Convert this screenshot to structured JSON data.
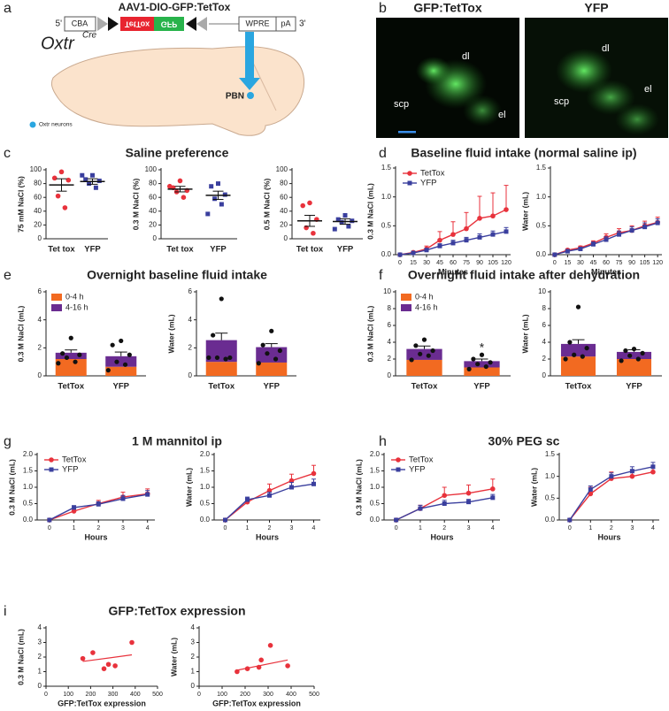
{
  "panel_labels": [
    "a",
    "b",
    "c",
    "d",
    "e",
    "f",
    "g",
    "h",
    "i"
  ],
  "construct": {
    "title": "AAV1-DIO-GFP:TetTox",
    "five_prime": "5'",
    "promoter": "CBA",
    "tettox": "TetTox",
    "gfp": "GFP",
    "wpre": "WPRE",
    "pa": "pA",
    "three_prime": "3'"
  },
  "brain": {
    "mouse_line": "Oxtr",
    "superscript": "Cre",
    "region": "PBN",
    "legend": "Oxtr neurons"
  },
  "images": [
    {
      "title": "GFP:TetTox",
      "labels": [
        "dl",
        "scp",
        "el"
      ]
    },
    {
      "title": "YFP",
      "labels": [
        "dl",
        "el",
        "scp"
      ]
    }
  ],
  "chart_data": [
    {
      "type": "strip",
      "title": "Saline preference",
      "ylabel": "75 mM NaCl (%)",
      "categories": [
        "Tet tox",
        "YFP"
      ],
      "ylim": [
        0,
        100
      ],
      "yticks": [
        0,
        20,
        40,
        60,
        80,
        100
      ],
      "series": [
        {
          "color": "#e8323c",
          "marker": "circle",
          "values": [
            97,
            88,
            85,
            62,
            45
          ],
          "mean": 78,
          "error": 9
        },
        {
          "color": "#3a3f9e",
          "marker": "square",
          "values": [
            92,
            86,
            84,
            80,
            74,
            92
          ],
          "mean": 83,
          "error": 4
        }
      ]
    },
    {
      "type": "strip",
      "ylabel": "0.3 M NaCl (%)",
      "categories": [
        "Tet tox",
        "YFP"
      ],
      "ylim": [
        0,
        100
      ],
      "yticks": [
        0,
        20,
        40,
        60,
        80,
        100
      ],
      "series": [
        {
          "color": "#e8323c",
          "marker": "circle",
          "values": [
            84,
            74,
            70,
            68,
            60,
            76
          ],
          "mean": 72,
          "error": 4
        },
        {
          "color": "#3a3f9e",
          "marker": "square",
          "values": [
            80,
            76,
            64,
            58,
            50,
            36
          ],
          "mean": 63,
          "error": 6
        }
      ]
    },
    {
      "type": "strip",
      "ylabel": "0.5 M NaCl (%)",
      "categories": [
        "Tet tox",
        "YFP"
      ],
      "ylim": [
        0,
        100
      ],
      "yticks": [
        0,
        20,
        40,
        60,
        80,
        100
      ],
      "series": [
        {
          "color": "#e8323c",
          "marker": "circle",
          "values": [
            52,
            48,
            28,
            16,
            8
          ],
          "mean": 26,
          "error": 8
        },
        {
          "color": "#3a3f9e",
          "marker": "square",
          "values": [
            34,
            28,
            26,
            24,
            18,
            14
          ],
          "mean": 25,
          "error": 4
        }
      ]
    },
    {
      "type": "line",
      "title": "Baseline fluid intake (normal saline ip)",
      "ylabel": "0.3 M NaCl (mL)",
      "xlabel": "Minutes",
      "legend": "upper left",
      "x": [
        0,
        15,
        30,
        45,
        60,
        75,
        90,
        105,
        120
      ],
      "xlim": [
        -5,
        125
      ],
      "xticks": [
        0,
        15,
        30,
        45,
        60,
        75,
        90,
        105,
        120
      ],
      "ylim": [
        0,
        1.5
      ],
      "yticks": [
        {
          "value": 0,
          "label": "0.0"
        },
        0.5,
        {
          "value": 1,
          "label": "1.0"
        },
        1.5
      ],
      "series": [
        {
          "name": "TetTox",
          "color": "#e8323c",
          "marker": "circle",
          "values": [
            0,
            0.04,
            0.1,
            0.25,
            0.35,
            0.45,
            0.63,
            0.67,
            0.78
          ],
          "errors": [
            0,
            0.02,
            0.05,
            0.15,
            0.22,
            0.28,
            0.38,
            0.4,
            0.42
          ]
        },
        {
          "name": "YFP",
          "color": "#3a3f9e",
          "marker": "square",
          "values": [
            0,
            0.03,
            0.08,
            0.15,
            0.2,
            0.25,
            0.3,
            0.35,
            0.4
          ],
          "errors": [
            0,
            0.02,
            0.03,
            0.04,
            0.05,
            0.05,
            0.06,
            0.06,
            0.07
          ]
        }
      ]
    },
    {
      "type": "line",
      "ylabel": "Water (mL)",
      "xlabel": "Minutes",
      "x": [
        0,
        15,
        30,
        45,
        60,
        75,
        90,
        105,
        120
      ],
      "xlim": [
        -5,
        125
      ],
      "xticks": [
        0,
        15,
        30,
        45,
        60,
        75,
        90,
        105,
        120
      ],
      "ylim": [
        0,
        1.5
      ],
      "yticks": [
        {
          "value": 0,
          "label": "0.0"
        },
        0.5,
        {
          "value": 1,
          "label": "1.0"
        },
        1.5
      ],
      "series": [
        {
          "name": "TetTox",
          "color": "#e8323c",
          "marker": "circle",
          "values": [
            0,
            0.08,
            0.12,
            0.2,
            0.3,
            0.38,
            0.42,
            0.5,
            0.56
          ],
          "errors": [
            0,
            0.02,
            0.03,
            0.04,
            0.06,
            0.07,
            0.08,
            0.08,
            0.09
          ]
        },
        {
          "name": "YFP",
          "color": "#3a3f9e",
          "marker": "square",
          "values": [
            0,
            0.06,
            0.1,
            0.18,
            0.26,
            0.35,
            0.42,
            0.48,
            0.55
          ],
          "errors": [
            0,
            0.02,
            0.03,
            0.04,
            0.05,
            0.06,
            0.06,
            0.07,
            0.07
          ]
        }
      ]
    },
    {
      "type": "bar",
      "title": "Overnight baseline fluid intake",
      "ylabel": "0.3 M NaCl (mL)",
      "legend": "upper left",
      "categories": [
        "TetTox",
        "YFP"
      ],
      "ylim": [
        0,
        6
      ],
      "yticks": [
        0,
        2,
        4,
        6
      ],
      "series": [
        {
          "name": "0-4 h",
          "color": "#f26a21",
          "values": [
            1.2,
            0.65
          ]
        },
        {
          "name": "4-16 h",
          "color": "#6a2c91",
          "values": [
            0.45,
            0.75
          ]
        }
      ],
      "errors": [
        0.2,
        0.3
      ],
      "points": [
        [
          2.7,
          1.6,
          1.5,
          1.3,
          1.0,
          0.9
        ],
        [
          2.5,
          2.2,
          1.5,
          1.0,
          0.8,
          0.4
        ]
      ]
    },
    {
      "type": "bar",
      "ylabel": "Water (mL)",
      "categories": [
        "TetTox",
        "YFP"
      ],
      "ylim": [
        0,
        6
      ],
      "yticks": [
        0,
        2,
        4,
        6
      ],
      "series": [
        {
          "name": "0-4 h",
          "color": "#f26a21",
          "values": [
            1.0,
            0.95
          ]
        },
        {
          "name": "4-16 h",
          "color": "#6a2c91",
          "values": [
            1.55,
            1.1
          ]
        }
      ],
      "errors": [
        0.5,
        0.25
      ],
      "points": [
        [
          5.5,
          2.9,
          1.3,
          1.3,
          1.2,
          1.3
        ],
        [
          3.2,
          2.2,
          1.8,
          1.6,
          1.2,
          0.9
        ]
      ]
    },
    {
      "type": "bar",
      "title": "Overnight fluid intake after dehydration",
      "ylabel": "0.3 M NaCl (mL)",
      "legend": "upper left",
      "annotation": "*",
      "categories": [
        "TetTox",
        "YFP"
      ],
      "ylim": [
        0,
        10
      ],
      "yticks": [
        0,
        2,
        4,
        6,
        8,
        10
      ],
      "series": [
        {
          "name": "0-4 h",
          "color": "#f26a21",
          "values": [
            1.9,
            1.0
          ]
        },
        {
          "name": "4-16 h",
          "color": "#6a2c91",
          "values": [
            1.3,
            0.75
          ]
        }
      ],
      "errors": [
        0.35,
        0.25
      ],
      "points": [
        [
          4.3,
          3.6,
          3.0,
          2.6,
          2.4,
          1.9
        ],
        [
          2.5,
          2.0,
          1.6,
          1.4,
          1.1,
          0.8
        ]
      ]
    },
    {
      "type": "bar",
      "ylabel": "Water (mL)",
      "categories": [
        "TetTox",
        "YFP"
      ],
      "ylim": [
        0,
        10
      ],
      "yticks": [
        0,
        2,
        4,
        6,
        8,
        10
      ],
      "series": [
        {
          "name": "0-4 h",
          "color": "#f26a21",
          "values": [
            2.3,
            2.0
          ]
        },
        {
          "name": "4-16 h",
          "color": "#6a2c91",
          "values": [
            1.5,
            0.85
          ]
        }
      ],
      "errors": [
        0.5,
        0.25
      ],
      "points": [
        [
          8.2,
          4.0,
          3.3,
          2.5,
          2.3,
          2.0
        ],
        [
          3.2,
          3.0,
          2.7,
          2.4,
          2.0,
          1.8
        ]
      ]
    },
    {
      "type": "line",
      "title": "1 M mannitol ip",
      "ylabel": "0.3 M NaCl (mL)",
      "xlabel": "Hours",
      "legend": "upper left",
      "x": [
        0,
        1,
        2,
        3,
        4
      ],
      "xlim": [
        -0.5,
        4.3
      ],
      "xticks": [
        0,
        1,
        2,
        3,
        4
      ],
      "ylim": [
        0,
        2
      ],
      "yticks": [
        {
          "value": 0,
          "label": "0.0"
        },
        0.5,
        {
          "value": 1,
          "label": "1.0"
        },
        1.5,
        {
          "value": 2,
          "label": "2.0"
        }
      ],
      "series": [
        {
          "name": "TetTox",
          "color": "#e8323c",
          "marker": "circle",
          "values": [
            0,
            0.27,
            0.5,
            0.7,
            0.8
          ],
          "errors": [
            0,
            0.08,
            0.1,
            0.15,
            0.15
          ]
        },
        {
          "name": "YFP",
          "color": "#3a3f9e",
          "marker": "square",
          "values": [
            0,
            0.38,
            0.48,
            0.65,
            0.78
          ],
          "errors": [
            0,
            0.06,
            0.08,
            0.1,
            0.12
          ]
        }
      ]
    },
    {
      "type": "line",
      "ylabel": "Water (mL)",
      "xlabel": "Hours",
      "x": [
        0,
        1,
        2,
        3,
        4
      ],
      "xlim": [
        -0.5,
        4.3
      ],
      "xticks": [
        0,
        1,
        2,
        3,
        4
      ],
      "ylim": [
        0,
        2
      ],
      "yticks": [
        {
          "value": 0,
          "label": "0.0"
        },
        0.5,
        {
          "value": 1,
          "label": "1.0"
        },
        1.5,
        {
          "value": 2,
          "label": "2.0"
        }
      ],
      "series": [
        {
          "name": "TetTox",
          "color": "#e8323c",
          "marker": "circle",
          "values": [
            0,
            0.55,
            0.9,
            1.2,
            1.42
          ],
          "errors": [
            0,
            0.1,
            0.2,
            0.2,
            0.25
          ]
        },
        {
          "name": "YFP",
          "color": "#3a3f9e",
          "marker": "square",
          "values": [
            0,
            0.62,
            0.75,
            1.0,
            1.1
          ],
          "errors": [
            0,
            0.08,
            0.1,
            0.15,
            0.15
          ]
        }
      ]
    },
    {
      "type": "line",
      "title": "30% PEG sc",
      "ylabel": "0.3 M NaCl (mL)",
      "xlabel": "Hours",
      "legend": "upper left",
      "x": [
        0,
        1,
        2,
        3,
        4
      ],
      "xlim": [
        -0.5,
        4.3
      ],
      "xticks": [
        0,
        1,
        2,
        3,
        4
      ],
      "ylim": [
        0,
        2
      ],
      "yticks": [
        {
          "value": 0,
          "label": "0.0"
        },
        0.5,
        {
          "value": 1,
          "label": "1.0"
        },
        1.5,
        {
          "value": 2,
          "label": "2.0"
        }
      ],
      "series": [
        {
          "name": "TetTox",
          "color": "#e8323c",
          "marker": "circle",
          "values": [
            0,
            0.35,
            0.75,
            0.82,
            0.95
          ],
          "errors": [
            0,
            0.1,
            0.25,
            0.25,
            0.3
          ]
        },
        {
          "name": "YFP",
          "color": "#3a3f9e",
          "marker": "square",
          "values": [
            0,
            0.35,
            0.5,
            0.55,
            0.68
          ],
          "errors": [
            0,
            0.1,
            0.1,
            0.08,
            0.1
          ]
        }
      ]
    },
    {
      "type": "line",
      "ylabel": "Water (mL)",
      "xlabel": "Hours",
      "x": [
        0,
        1,
        2,
        3,
        4
      ],
      "xlim": [
        -0.5,
        4.3
      ],
      "xticks": [
        0,
        1,
        2,
        3,
        4
      ],
      "ylim": [
        0,
        1.5
      ],
      "yticks": [
        {
          "value": 0,
          "label": "0.0"
        },
        0.5,
        {
          "value": 1,
          "label": "1.0"
        },
        1.5
      ],
      "series": [
        {
          "name": "TetTox",
          "color": "#e8323c",
          "marker": "circle",
          "values": [
            0,
            0.6,
            0.95,
            1.0,
            1.1
          ],
          "errors": [
            0,
            0.15,
            0.15,
            0.15,
            0.15
          ]
        },
        {
          "name": "YFP",
          "color": "#3a3f9e",
          "marker": "square",
          "values": [
            0,
            0.7,
            1.0,
            1.12,
            1.22
          ],
          "errors": [
            0,
            0.08,
            0.08,
            0.1,
            0.1
          ]
        }
      ]
    },
    {
      "type": "scatter",
      "title": "GFP:TetTox expression",
      "ylabel": "0.3 M NaCl (mL)",
      "xlabel": "GFP:TetTox expression",
      "color": "#e8323c",
      "x": [
        165,
        210,
        260,
        280,
        310,
        385
      ],
      "y": [
        1.9,
        2.3,
        1.2,
        1.5,
        1.4,
        3.0
      ],
      "fit": {
        "x": [
          165,
          385
        ],
        "y": [
          1.7,
          2.15
        ]
      },
      "xlim": [
        0,
        500
      ],
      "xticks": [
        0,
        100,
        200,
        300,
        400,
        500
      ],
      "ylim": [
        0,
        4
      ],
      "yticks": [
        0,
        1,
        2,
        3,
        4
      ]
    },
    {
      "type": "scatter",
      "ylabel": "Water (mL)",
      "xlabel": "GFP:TetTox expression",
      "color": "#e8323c",
      "x": [
        165,
        210,
        260,
        270,
        310,
        385
      ],
      "y": [
        1.0,
        1.2,
        1.3,
        1.8,
        2.8,
        1.4
      ],
      "fit": {
        "x": [
          165,
          385
        ],
        "y": [
          1.1,
          1.8
        ]
      },
      "xlim": [
        0,
        500
      ],
      "xticks": [
        0,
        100,
        200,
        300,
        400,
        500
      ],
      "ylim": [
        0,
        4
      ],
      "yticks": [
        0,
        1,
        2,
        3,
        4
      ]
    }
  ]
}
